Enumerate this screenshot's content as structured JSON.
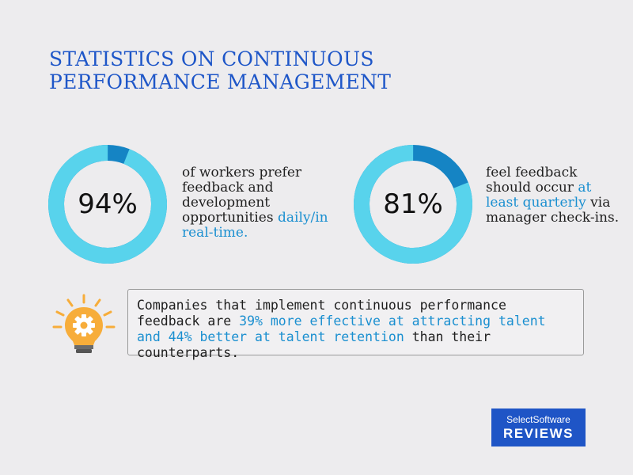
{
  "title": {
    "line1": "STATISTICS ON CONTINUOUS",
    "line2": "PERFORMANCE MANAGEMENT"
  },
  "colors": {
    "title": "#1e56c8",
    "ring_light": "#58d3ec",
    "ring_dark": "#1584c4",
    "highlight": "#1a8fd0",
    "logo_bg": "#1f55c6",
    "bulb": "#f7ad3a"
  },
  "stats": [
    {
      "value_label": "94%",
      "fraction": 0.94,
      "text_before": "of workers prefer feedback and development opportunities ",
      "text_highlight": "daily/in real-time.",
      "text_after": ""
    },
    {
      "value_label": "81%",
      "fraction": 0.81,
      "text_before": "feel feedback should occur ",
      "text_highlight": "at least quarterly",
      "text_after": " via manager check-ins."
    }
  ],
  "callout": {
    "icon": "lightbulb-gear-icon",
    "text_before": "Companies that implement continuous performance feedback are ",
    "text_highlight": "39% more effective at attracting talent and 44% better at talent retention",
    "text_after": " than their counterparts."
  },
  "logo": {
    "line1": "SelectSoftware",
    "line2": "REVIEWS"
  }
}
